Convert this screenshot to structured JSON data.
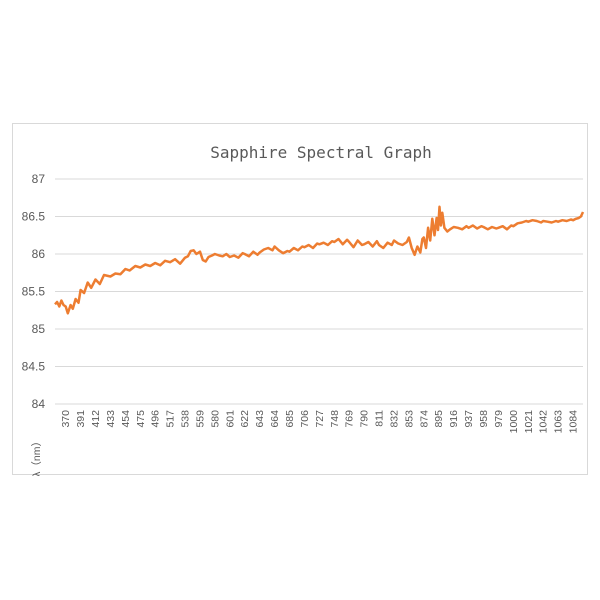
{
  "colors": {
    "series": "#ed7d31",
    "grid": "#d9d9d9",
    "text": "#595959"
  },
  "chart_data": {
    "type": "line",
    "title": "Sapphire Spectral Graph",
    "xlabel": "λ（nm）",
    "ylabel": "",
    "ylim": [
      84,
      87
    ],
    "yticks": [
      84,
      84.5,
      85,
      85.5,
      86,
      86.5,
      87
    ],
    "xlim": [
      355,
      1098
    ],
    "xticks": [
      370,
      391,
      412,
      433,
      454,
      475,
      496,
      517,
      538,
      559,
      580,
      601,
      622,
      643,
      664,
      685,
      706,
      727,
      748,
      769,
      790,
      811,
      832,
      853,
      874,
      895,
      916,
      937,
      958,
      979,
      1000,
      1021,
      1042,
      1063,
      1084
    ],
    "grid": true,
    "legend": "none",
    "series": [
      {
        "x": [
          355,
          358,
          361,
          364,
          367,
          370,
          373,
          377,
          380,
          384,
          388,
          391,
          396,
          401,
          406,
          412,
          418,
          424,
          433,
          440,
          447,
          454,
          460,
          468,
          475,
          482,
          489,
          496,
          503,
          510,
          517,
          524,
          531,
          538,
          542,
          546,
          550,
          554,
          559,
          563,
          567,
          571,
          576,
          580,
          586,
          591,
          596,
          601,
          607,
          613,
          619,
          622,
          628,
          634,
          640,
          643,
          649,
          655,
          661,
          664,
          670,
          676,
          682,
          685,
          691,
          697,
          703,
          706,
          712,
          718,
          724,
          727,
          733,
          739,
          745,
          748,
          754,
          760,
          766,
          769,
          775,
          781,
          787,
          790,
          796,
          802,
          808,
          811,
          817,
          823,
          829,
          832,
          838,
          844,
          850,
          853,
          857,
          861,
          865,
          869,
          872,
          874,
          877,
          880,
          883,
          886,
          889,
          892,
          894,
          896,
          898,
          900,
          903,
          907,
          911,
          916,
          922,
          928,
          934,
          937,
          943,
          949,
          955,
          958,
          964,
          970,
          976,
          979,
          985,
          991,
          997,
          1000,
          1006,
          1012,
          1018,
          1021,
          1027,
          1033,
          1039,
          1042,
          1048,
          1054,
          1060,
          1063,
          1069,
          1075,
          1081,
          1084,
          1088,
          1092,
          1095,
          1098
        ],
        "values": [
          85.33,
          85.36,
          85.3,
          85.38,
          85.32,
          85.3,
          85.21,
          85.32,
          85.27,
          85.4,
          85.35,
          85.52,
          85.48,
          85.62,
          85.55,
          85.66,
          85.6,
          85.72,
          85.7,
          85.74,
          85.73,
          85.8,
          85.78,
          85.84,
          85.82,
          85.86,
          85.84,
          85.88,
          85.85,
          85.91,
          85.89,
          85.93,
          85.87,
          85.95,
          85.97,
          86.04,
          86.05,
          86.0,
          86.03,
          85.92,
          85.9,
          85.96,
          85.98,
          86.0,
          85.98,
          85.97,
          86.0,
          85.96,
          85.98,
          85.95,
          86.01,
          86.0,
          85.97,
          86.03,
          85.99,
          86.02,
          86.06,
          86.08,
          86.05,
          86.1,
          86.05,
          86.01,
          86.04,
          86.03,
          86.08,
          86.05,
          86.1,
          86.09,
          86.12,
          86.08,
          86.14,
          86.13,
          86.15,
          86.12,
          86.17,
          86.16,
          86.2,
          86.13,
          86.19,
          86.16,
          86.09,
          86.18,
          86.12,
          86.13,
          86.16,
          86.1,
          86.17,
          86.12,
          86.08,
          86.15,
          86.12,
          86.18,
          86.14,
          86.12,
          86.16,
          86.22,
          86.08,
          85.99,
          86.1,
          86.02,
          86.2,
          86.22,
          86.08,
          86.35,
          86.18,
          86.47,
          86.25,
          86.48,
          86.32,
          86.63,
          86.38,
          86.55,
          86.35,
          86.3,
          86.33,
          86.36,
          86.35,
          86.33,
          86.37,
          86.35,
          86.38,
          86.34,
          86.37,
          86.36,
          86.33,
          86.36,
          86.34,
          86.35,
          86.37,
          86.33,
          86.38,
          86.37,
          86.41,
          86.42,
          86.44,
          86.43,
          86.45,
          86.44,
          86.42,
          86.44,
          86.43,
          86.42,
          86.44,
          86.43,
          86.45,
          86.44,
          86.46,
          86.45,
          86.47,
          86.48,
          86.5,
          86.56
        ]
      }
    ]
  }
}
